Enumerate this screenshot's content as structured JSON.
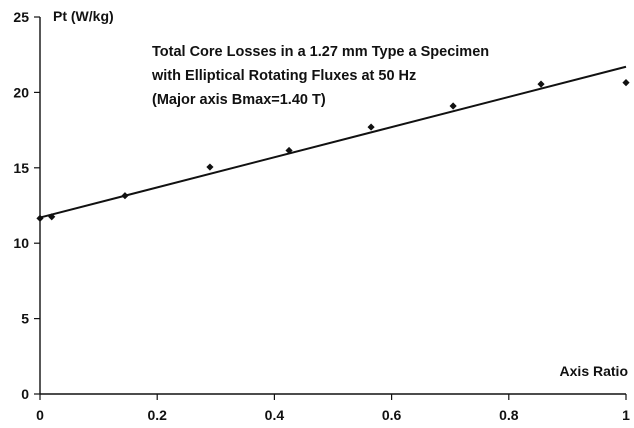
{
  "chart_data": {
    "type": "scatter",
    "title_lines": [
      "Total Core Losses in a 1.27 mm Type a Specimen",
      "with Elliptical Rotating Fluxes at 50 Hz",
      "(Major axis Bmax=1.40 T)"
    ],
    "xlabel": "Axis Ratio",
    "ylabel": "Pt (W/kg)",
    "xlim": [
      0,
      1
    ],
    "ylim": [
      0,
      25
    ],
    "x_ticks": [
      0,
      0.2,
      0.4,
      0.6,
      0.8,
      1
    ],
    "x_tick_labels": [
      "0",
      "0.2",
      "0.4",
      "0.6",
      "0.8",
      "1"
    ],
    "y_ticks": [
      0,
      5,
      10,
      15,
      20,
      25
    ],
    "y_tick_labels": [
      "0",
      "5",
      "10",
      "15",
      "20",
      "25"
    ],
    "grid": false,
    "points": [
      {
        "x": 0.0,
        "y": 11.65
      },
      {
        "x": 0.02,
        "y": 11.75
      },
      {
        "x": 0.145,
        "y": 13.15
      },
      {
        "x": 0.29,
        "y": 15.05
      },
      {
        "x": 0.425,
        "y": 16.15
      },
      {
        "x": 0.565,
        "y": 17.7
      },
      {
        "x": 0.705,
        "y": 19.1
      },
      {
        "x": 0.855,
        "y": 20.55
      },
      {
        "x": 1.0,
        "y": 20.65
      }
    ],
    "fit_line": {
      "x": [
        0,
        1
      ],
      "y": [
        11.7,
        21.7
      ]
    },
    "colors": {
      "marks": "#111111",
      "axis": "#111111"
    }
  }
}
